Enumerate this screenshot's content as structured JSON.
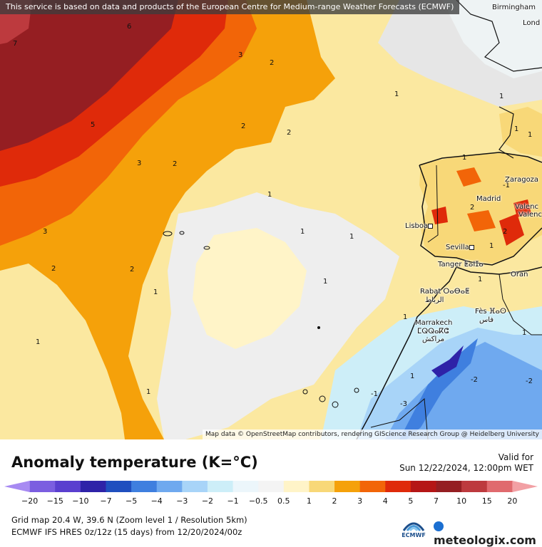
{
  "banner": "This service is based on data and products of the European Centre for Medium-range Weather Forecasts (ECMWF)",
  "attribution": "Map data © OpenStreetMap contributors, rendering GIScience Research Group @ Heidelberg University",
  "cities": [
    "Birmingham",
    "Lond",
    "Zaragoza",
    "Madrid",
    "Valenc",
    "Valenc",
    "Lisboa",
    "Sevilla",
    "Tanger ⵟⴰⵏⵊⴰ",
    "Oran",
    "Rabat ⵔⴰⴱⴰⵟ",
    "الرباط",
    "Fès ⴼⴰⵙ",
    "فاس",
    "Marrakech",
    "ⵎⵕⵕⴰⴽⵛ",
    "مراكش"
  ],
  "contour_labels": [
    "7",
    "6",
    "5",
    "3",
    "3",
    "2",
    "2",
    "2",
    "2",
    "1",
    "1",
    "1",
    "1",
    "1",
    "1",
    "1",
    "3",
    "2",
    "2",
    "1",
    "1",
    "1",
    "1",
    "1",
    "1",
    "2",
    "1",
    "1",
    "2",
    "-1",
    "-1",
    "-2",
    "-3",
    "-2",
    "1",
    "1"
  ],
  "legend": {
    "title": "Anomaly temperature (K=°C)",
    "valid_label": "Valid for",
    "valid_time": "Sun 12/22/2024, 12:00pm WET",
    "ticks": [
      "−20",
      "−15",
      "−10",
      "−7",
      "−5",
      "−4",
      "−3",
      "−2",
      "−1",
      "−0.5",
      "0.5",
      "1",
      "2",
      "3",
      "4",
      "5",
      "7",
      "10",
      "15",
      "20"
    ],
    "colors": [
      "#a78af2",
      "#7b5ee0",
      "#5a3fcf",
      "#2e22a8",
      "#1f4fbf",
      "#3f7fdf",
      "#6fa9ef",
      "#a8d4f8",
      "#cdeef8",
      "#ecf6fb",
      "#f4f4f4",
      "#fff4c8",
      "#f8d878",
      "#f5a10a",
      "#f26508",
      "#df2a0a",
      "#b51616",
      "#951e22",
      "#bd3a3e",
      "#e06a6e",
      "#f2a0a4"
    ]
  },
  "info": {
    "grid": "Grid map 20.4 W, 39.6 N (Zoom level 1 / Resolution 5km)",
    "model": "ECMWF IFS HRES 0z/12z (15 days) from 12/20/2024/00z"
  },
  "brand": {
    "ecmwf": "ECMWF",
    "site": "meteologix.com"
  }
}
